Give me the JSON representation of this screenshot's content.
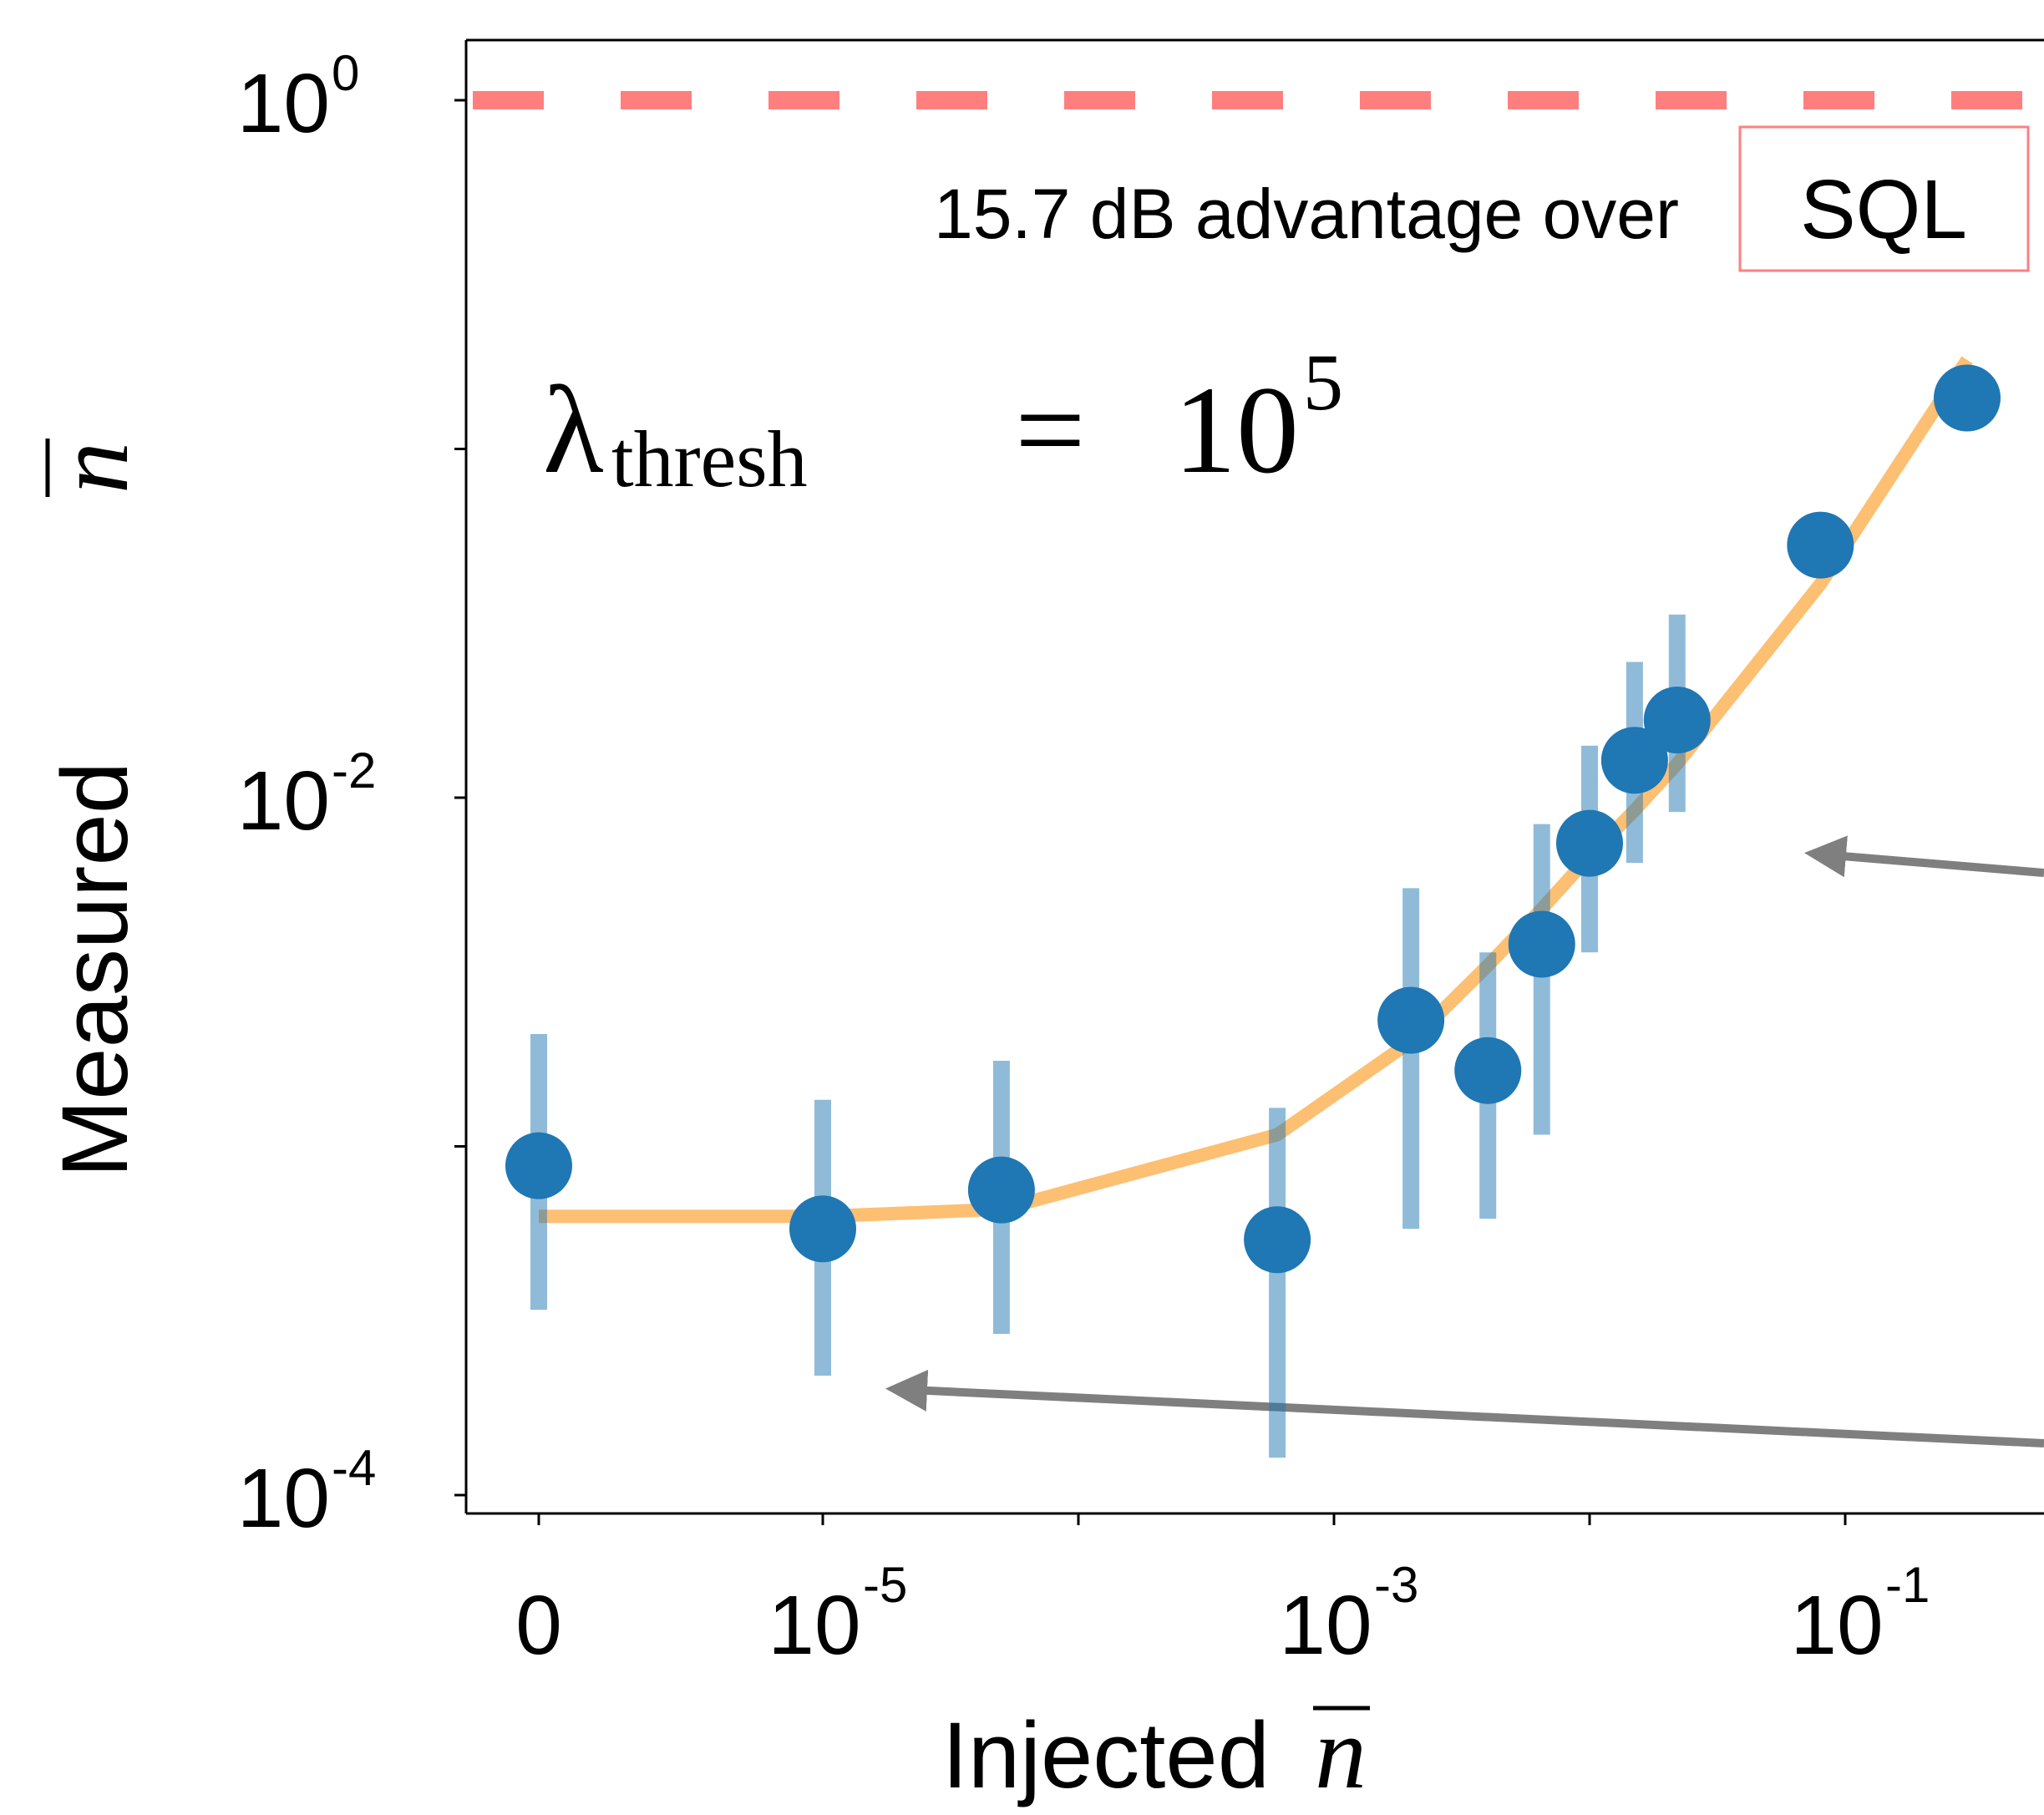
{
  "chart_data": {
    "type": "scatter",
    "title": "",
    "xlabel": "Injected",
    "ylabel": "Measured",
    "axis_symbol": "n",
    "xscale": "symlog",
    "yscale": "log",
    "xticks": [
      {
        "value": 0,
        "base": "0",
        "exp": ""
      },
      {
        "value": 1e-05,
        "base": "10",
        "exp": "-5"
      },
      {
        "value": 0.001,
        "base": "10",
        "exp": "-3"
      },
      {
        "value": 0.1,
        "base": "10",
        "exp": "-1"
      }
    ],
    "yticks": [
      {
        "value": 1,
        "base": "10",
        "exp": "0"
      },
      {
        "value": 0.01,
        "base": "10",
        "exp": "-2"
      },
      {
        "value": 0.0001,
        "base": "10",
        "exp": "-4"
      }
    ],
    "ylim": [
      8e-05,
      1.4
    ],
    "grid": false,
    "reference_line": {
      "name": "SQL",
      "y": 1.0,
      "color": "#ff7f7f",
      "style": "dashed"
    },
    "annotation": {
      "text": "15.7 dB advantage over",
      "boxed_label": "SQL"
    },
    "parameter_label": {
      "symbol": "λ",
      "subscript": "thresh",
      "relation": "=",
      "base": "10",
      "exp": "5"
    },
    "series": [
      {
        "type": "points",
        "color": "#1f77b4",
        "errorbar_color": "#1f77b4",
        "points": [
          {
            "x": 0,
            "y": 0.00088,
            "ylo": 0.00034,
            "yhi": 0.0021
          },
          {
            "x": 1e-05,
            "y": 0.00058,
            "ylo": 0.00022,
            "yhi": 0.00136
          },
          {
            "x": 5e-05,
            "y": 0.00075,
            "ylo": 0.00029,
            "yhi": 0.00176
          },
          {
            "x": 0.0006,
            "y": 0.00054,
            "ylo": 0.000128,
            "yhi": 0.00129
          },
          {
            "x": 0.002,
            "y": 0.0023,
            "ylo": 0.00058,
            "yhi": 0.0055
          },
          {
            "x": 0.004,
            "y": 0.00165,
            "ylo": 0.00062,
            "yhi": 0.0036
          },
          {
            "x": 0.0065,
            "y": 0.0038,
            "ylo": 0.00108,
            "yhi": 0.0084
          },
          {
            "x": 0.01,
            "y": 0.0074,
            "ylo": 0.0036,
            "yhi": 0.0141
          },
          {
            "x": 0.015,
            "y": 0.0128,
            "ylo": 0.0065,
            "yhi": 0.0245
          },
          {
            "x": 0.022,
            "y": 0.0167,
            "ylo": 0.0091,
            "yhi": 0.0335
          },
          {
            "x": 0.08,
            "y": 0.053,
            "ylo": 0.043,
            "yhi": 0.064
          },
          {
            "x": 0.3,
            "y": 0.14,
            "ylo": 0.14,
            "yhi": 0.14
          }
        ]
      },
      {
        "type": "line",
        "color": "#fdb863",
        "points": [
          {
            "x": 0,
            "y": 0.00063
          },
          {
            "x": 1e-05,
            "y": 0.00063
          },
          {
            "x": 5e-05,
            "y": 0.00066
          },
          {
            "x": 0.0006,
            "y": 0.00108
          },
          {
            "x": 0.002,
            "y": 0.002
          },
          {
            "x": 0.004,
            "y": 0.0033
          },
          {
            "x": 0.0065,
            "y": 0.0048
          },
          {
            "x": 0.01,
            "y": 0.0068
          },
          {
            "x": 0.015,
            "y": 0.0092
          },
          {
            "x": 0.022,
            "y": 0.0125
          },
          {
            "x": 0.08,
            "y": 0.041
          },
          {
            "x": 0.3,
            "y": 0.18
          }
        ]
      }
    ]
  }
}
